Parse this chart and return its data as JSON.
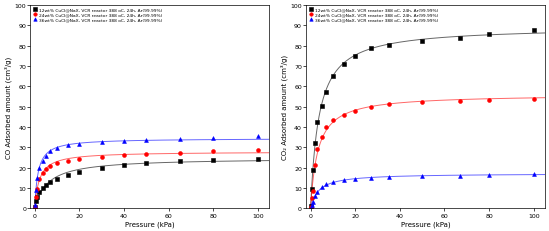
{
  "left": {
    "xlabel": "Pressure (kPa)",
    "ylabel": "CO Adsorbed amount (cm³/g)",
    "ylim": [
      0,
      100
    ],
    "xlim": [
      -2,
      105
    ],
    "yticks": [
      0,
      10,
      20,
      30,
      40,
      50,
      60,
      70,
      80,
      90,
      100
    ],
    "xticks": [
      0,
      20,
      40,
      60,
      80,
      100
    ],
    "series": [
      {
        "label": "12wt% CuCl@NaX, VCR reactor 388 oC, 24h, Ar(99.99%)",
        "color": "#000000",
        "marker": "s",
        "pressure": [
          0.05,
          0.5,
          1.0,
          2.0,
          3.5,
          5.0,
          7.0,
          10.0,
          15.0,
          20.0,
          30.0,
          40.0,
          50.0,
          65.0,
          80.0,
          100.0
        ],
        "adsorbed": [
          0.5,
          3.5,
          5.5,
          8.0,
          10.0,
          11.5,
          13.0,
          14.5,
          16.5,
          18.0,
          20.0,
          21.5,
          22.5,
          23.5,
          24.0,
          24.5
        ]
      },
      {
        "label": "24wt% CuCl@NaX, VCR reactor 388 oC, 24h, Ar(99.99%)",
        "color": "#ff0000",
        "marker": "o",
        "pressure": [
          0.05,
          0.5,
          1.0,
          2.0,
          3.5,
          5.0,
          7.0,
          10.0,
          15.0,
          20.0,
          30.0,
          40.0,
          50.0,
          65.0,
          80.0,
          100.0
        ],
        "adsorbed": [
          0.5,
          5.5,
          9.5,
          14.5,
          17.5,
          19.5,
          21.0,
          22.5,
          23.5,
          24.5,
          25.5,
          26.5,
          27.0,
          27.5,
          28.0,
          28.5
        ]
      },
      {
        "label": "36wt% CuCl@NaX, VCR reactor 388 oC, 24h, Ar(99.99%)",
        "color": "#0000ff",
        "marker": "^",
        "pressure": [
          0.05,
          0.5,
          1.0,
          2.0,
          3.5,
          5.0,
          7.0,
          10.0,
          15.0,
          20.0,
          30.0,
          40.0,
          50.0,
          65.0,
          80.0,
          100.0
        ],
        "adsorbed": [
          1.5,
          9.0,
          15.0,
          20.0,
          23.5,
          26.0,
          28.0,
          29.5,
          31.0,
          31.5,
          32.5,
          33.0,
          33.5,
          34.0,
          34.5,
          35.5
        ]
      }
    ]
  },
  "right": {
    "xlabel": "Pressure (kPa)",
    "ylabel": "CO₂ Adsorbed amount (cm³/g)",
    "ylim": [
      0,
      100
    ],
    "xlim": [
      -2,
      105
    ],
    "yticks": [
      0,
      10,
      20,
      30,
      40,
      50,
      60,
      70,
      80,
      90,
      100
    ],
    "xticks": [
      0,
      20,
      40,
      60,
      80,
      100
    ],
    "series": [
      {
        "label": "12wt% CuCl@NaX, VCR reactor 388 oC, 24h, Ar(99.99%)",
        "color": "#000000",
        "marker": "s",
        "pressure": [
          0.05,
          0.5,
          1.0,
          2.0,
          3.0,
          5.0,
          7.0,
          10.0,
          15.0,
          20.0,
          27.0,
          35.0,
          50.0,
          67.0,
          80.0,
          100.0
        ],
        "adsorbed": [
          1.0,
          9.5,
          19.0,
          32.0,
          42.5,
          50.5,
          57.5,
          65.0,
          71.0,
          75.0,
          79.0,
          80.5,
          82.5,
          84.0,
          86.0,
          88.0
        ]
      },
      {
        "label": "24wt% CuCl@NaX, VCR reactor 388 oC, 24h, Ar(99.99%)",
        "color": "#ff0000",
        "marker": "o",
        "pressure": [
          0.05,
          0.5,
          1.0,
          2.0,
          3.0,
          5.0,
          7.0,
          10.0,
          15.0,
          20.0,
          27.0,
          35.0,
          50.0,
          67.0,
          80.0,
          100.0
        ],
        "adsorbed": [
          0.5,
          5.0,
          8.5,
          21.5,
          29.0,
          35.0,
          40.0,
          43.5,
          46.0,
          48.0,
          50.0,
          51.5,
          52.5,
          53.0,
          53.5,
          54.0
        ]
      },
      {
        "label": "36wt% CuCl@NaX, VCR reactor 388 oC, 24h, Ar(99.99%)",
        "color": "#0000ff",
        "marker": "^",
        "pressure": [
          0.05,
          0.5,
          1.0,
          2.0,
          3.0,
          5.0,
          7.0,
          10.0,
          15.0,
          20.0,
          27.0,
          35.0,
          50.0,
          67.0,
          80.0,
          100.0
        ],
        "adsorbed": [
          0.1,
          1.5,
          3.0,
          6.0,
          8.0,
          10.5,
          12.0,
          13.0,
          14.0,
          14.5,
          15.0,
          15.5,
          15.8,
          16.0,
          16.5,
          17.0
        ]
      }
    ]
  }
}
